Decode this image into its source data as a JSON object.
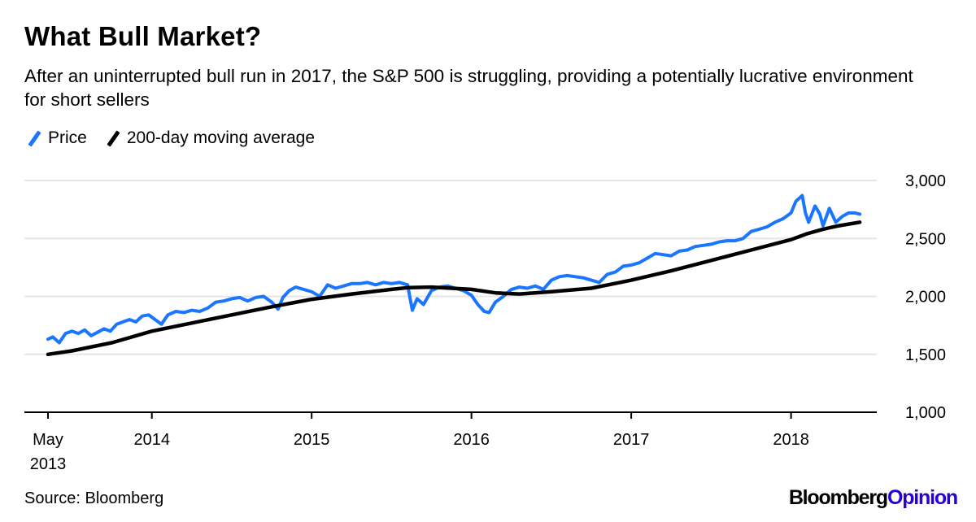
{
  "title": "What Bull Market?",
  "subtitle": "After an uninterrupted bull run in 2017, the S&P 500 is struggling, providing a potentially lucrative environment for short sellers",
  "legend": {
    "price": "Price",
    "ma": "200-day moving average"
  },
  "colors": {
    "price": "#1a75ff",
    "ma": "#000000",
    "grid": "#e6e6e6",
    "axis": "#000000",
    "brand_opinion": "#2800d7"
  },
  "source": "Source: Bloomberg",
  "brand": {
    "part1": "Bloomberg",
    "part2": "Opinion"
  },
  "chart_data": {
    "type": "line",
    "title": "What Bull Market?",
    "xlabel": "",
    "ylabel": "",
    "ylim": [
      1000,
      3000
    ],
    "xlim": [
      2013.35,
      2018.45
    ],
    "yticks": [
      {
        "value": 3000,
        "label": "3,000"
      },
      {
        "value": 2500,
        "label": "2,500"
      },
      {
        "value": 2000,
        "label": "2,000"
      },
      {
        "value": 1500,
        "label": "1,500"
      },
      {
        "value": 1000,
        "label": "1,000"
      }
    ],
    "xticks": [
      {
        "value": 2013.35,
        "label": "May",
        "label2": "2013"
      },
      {
        "value": 2014.0,
        "label": "2014"
      },
      {
        "value": 2015.0,
        "label": "2015"
      },
      {
        "value": 2016.0,
        "label": "2016"
      },
      {
        "value": 2017.0,
        "label": "2017"
      },
      {
        "value": 2018.0,
        "label": "2018"
      }
    ],
    "grid": true,
    "legend_position": "top-left",
    "series": [
      {
        "name": "Price",
        "x": [
          2013.35,
          2013.38,
          2013.42,
          2013.46,
          2013.5,
          2013.54,
          2013.58,
          2013.62,
          2013.66,
          2013.7,
          2013.74,
          2013.78,
          2013.82,
          2013.86,
          2013.9,
          2013.94,
          2013.98,
          2014.02,
          2014.06,
          2014.1,
          2014.15,
          2014.2,
          2014.25,
          2014.3,
          2014.35,
          2014.4,
          2014.45,
          2014.5,
          2014.55,
          2014.6,
          2014.65,
          2014.7,
          2014.75,
          2014.79,
          2014.82,
          2014.86,
          2014.9,
          2014.95,
          2015.0,
          2015.05,
          2015.1,
          2015.15,
          2015.2,
          2015.25,
          2015.3,
          2015.35,
          2015.4,
          2015.45,
          2015.5,
          2015.55,
          2015.6,
          2015.63,
          2015.66,
          2015.7,
          2015.75,
          2015.8,
          2015.85,
          2015.9,
          2015.95,
          2016.0,
          2016.04,
          2016.08,
          2016.11,
          2016.15,
          2016.2,
          2016.25,
          2016.3,
          2016.35,
          2016.4,
          2016.45,
          2016.5,
          2016.55,
          2016.6,
          2016.65,
          2016.7,
          2016.75,
          2016.8,
          2016.85,
          2016.9,
          2016.95,
          2017.0,
          2017.05,
          2017.1,
          2017.15,
          2017.2,
          2017.25,
          2017.3,
          2017.35,
          2017.4,
          2017.45,
          2017.5,
          2017.55,
          2017.6,
          2017.65,
          2017.7,
          2017.75,
          2017.8,
          2017.85,
          2017.9,
          2017.95,
          2018.0,
          2018.03,
          2018.07,
          2018.09,
          2018.11,
          2018.15,
          2018.18,
          2018.2,
          2018.24,
          2018.28,
          2018.32,
          2018.36,
          2018.4,
          2018.43
        ],
        "values": [
          1630,
          1650,
          1600,
          1680,
          1700,
          1680,
          1710,
          1660,
          1690,
          1720,
          1700,
          1760,
          1780,
          1800,
          1780,
          1830,
          1840,
          1800,
          1760,
          1840,
          1870,
          1860,
          1880,
          1870,
          1900,
          1950,
          1960,
          1980,
          1990,
          1960,
          1990,
          2000,
          1950,
          1890,
          1990,
          2050,
          2080,
          2060,
          2040,
          2000,
          2100,
          2070,
          2090,
          2110,
          2110,
          2120,
          2100,
          2120,
          2110,
          2120,
          2100,
          1880,
          1980,
          1930,
          2050,
          2080,
          2090,
          2070,
          2050,
          2010,
          1930,
          1870,
          1860,
          1950,
          2000,
          2060,
          2080,
          2070,
          2090,
          2060,
          2140,
          2170,
          2180,
          2170,
          2160,
          2140,
          2120,
          2190,
          2210,
          2260,
          2270,
          2290,
          2330,
          2370,
          2360,
          2350,
          2390,
          2400,
          2430,
          2440,
          2450,
          2470,
          2480,
          2480,
          2500,
          2560,
          2580,
          2600,
          2640,
          2670,
          2720,
          2820,
          2870,
          2720,
          2640,
          2780,
          2710,
          2610,
          2760,
          2640,
          2690,
          2720,
          2720,
          2710
        ]
      },
      {
        "name": "200-day moving average",
        "x": [
          2013.35,
          2013.5,
          2013.75,
          2014.0,
          2014.25,
          2014.5,
          2014.75,
          2015.0,
          2015.25,
          2015.5,
          2015.6,
          2015.75,
          2016.0,
          2016.15,
          2016.3,
          2016.5,
          2016.75,
          2017.0,
          2017.25,
          2017.5,
          2017.75,
          2018.0,
          2018.1,
          2018.2,
          2018.3,
          2018.43
        ],
        "values": [
          1500,
          1530,
          1600,
          1700,
          1770,
          1840,
          1910,
          1975,
          2020,
          2060,
          2075,
          2080,
          2060,
          2030,
          2020,
          2040,
          2070,
          2140,
          2220,
          2310,
          2400,
          2490,
          2540,
          2580,
          2610,
          2640
        ]
      }
    ]
  }
}
